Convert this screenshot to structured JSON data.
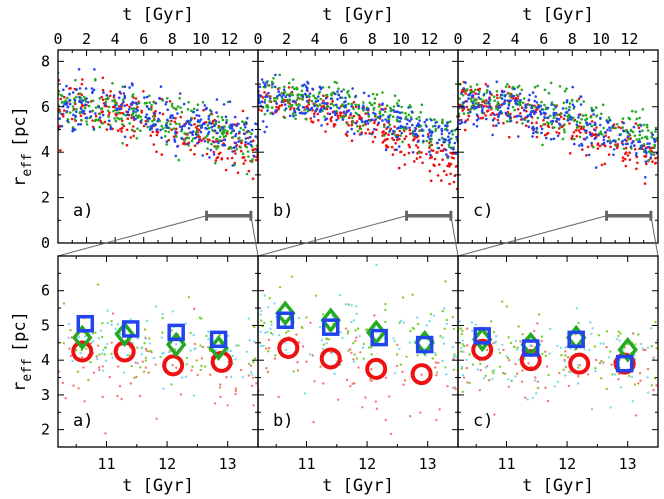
{
  "chart_data": {
    "type": "scatter",
    "description_series": [
      {
        "name": "red",
        "color": "#ee1111",
        "light_color": "#f47a6a"
      },
      {
        "name": "green",
        "color": "#22aa22",
        "light_color": "#7fd030"
      },
      {
        "name": "blue",
        "color": "#2244ee",
        "light_color": "#80d8ee"
      }
    ],
    "top_row": {
      "xlabel": "t [Gyr]",
      "ylabel_main": "r",
      "ylabel_sub": "eff",
      "ylabel_unit": "[pc]",
      "xlim": [
        0,
        14
      ],
      "ylim": [
        0,
        8.5
      ],
      "x_ticks": [
        "0",
        "2",
        "4",
        "6",
        "8",
        "10",
        "12"
      ],
      "x_tick_values": [
        0,
        2,
        4,
        6,
        8,
        10,
        12
      ],
      "y_ticks": [
        "0",
        "2",
        "4",
        "6",
        "8"
      ],
      "y_tick_values": [
        0,
        2,
        4,
        6,
        8
      ],
      "zoom_bar": [
        10.4,
        13.5
      ],
      "zoom_bar_y": 1.2,
      "panels": [
        {
          "label": "a)",
          "trend": {
            "red": [
              6.0,
              4.0
            ],
            "green": [
              6.0,
              4.3
            ],
            "blue": [
              6.0,
              4.6
            ]
          },
          "spread": 0.55
        },
        {
          "label": "b)",
          "trend": {
            "red": [
              6.3,
              3.3
            ],
            "green": [
              6.5,
              4.6
            ],
            "blue": [
              6.4,
              4.4
            ]
          },
          "spread": 0.45
        },
        {
          "label": "c)",
          "trend": {
            "red": [
              6.2,
              3.5
            ],
            "green": [
              6.3,
              4.4
            ],
            "blue": [
              6.2,
              4.0
            ]
          },
          "spread": 0.5
        }
      ]
    },
    "bottom_row": {
      "xlabel": "t [Gyr]",
      "ylabel_main": "r",
      "ylabel_sub": "eff",
      "ylabel_unit": "[pc]",
      "xlim": [
        10.2,
        13.5
      ],
      "ylim": [
        1.5,
        7.0
      ],
      "x_ticks": [
        "11",
        "12",
        "13"
      ],
      "x_tick_values": [
        11,
        12,
        13
      ],
      "y_ticks": [
        "2",
        "3",
        "4",
        "5",
        "6"
      ],
      "y_tick_values": [
        2,
        3,
        4,
        5,
        6
      ],
      "panels": [
        {
          "label": "a)",
          "red_circles": [
            [
              10.6,
              4.25
            ],
            [
              11.3,
              4.25
            ],
            [
              12.1,
              3.85
            ],
            [
              12.9,
              3.95
            ]
          ],
          "green_diamonds": [
            [
              10.6,
              4.65
            ],
            [
              11.3,
              4.75
            ],
            [
              12.15,
              4.45
            ],
            [
              12.85,
              4.35
            ]
          ],
          "blue_squares": [
            [
              10.65,
              5.05
            ],
            [
              11.4,
              4.9
            ],
            [
              12.15,
              4.8
            ],
            [
              12.85,
              4.6
            ]
          ],
          "dot_levels": {
            "red": 4.0,
            "green": 4.6,
            "blue": 4.6
          }
        },
        {
          "label": "b)",
          "red_circles": [
            [
              10.7,
              4.35
            ],
            [
              11.4,
              4.05
            ],
            [
              12.15,
              3.75
            ],
            [
              12.9,
              3.6
            ]
          ],
          "green_diamonds": [
            [
              10.65,
              5.35
            ],
            [
              11.4,
              5.15
            ],
            [
              12.15,
              4.8
            ],
            [
              12.95,
              4.5
            ]
          ],
          "blue_squares": [
            [
              10.65,
              5.15
            ],
            [
              11.4,
              4.95
            ],
            [
              12.2,
              4.65
            ],
            [
              12.95,
              4.45
            ]
          ],
          "dot_levels": {
            "red": 3.9,
            "green": 5.0,
            "blue": 4.8
          }
        },
        {
          "label": "c)",
          "red_circles": [
            [
              10.6,
              4.3
            ],
            [
              11.4,
              4.0
            ],
            [
              12.2,
              3.9
            ],
            [
              12.95,
              3.9
            ]
          ],
          "green_diamonds": [
            [
              10.6,
              4.6
            ],
            [
              11.4,
              4.45
            ],
            [
              12.15,
              4.65
            ],
            [
              13.0,
              4.3
            ]
          ],
          "blue_squares": [
            [
              10.6,
              4.7
            ],
            [
              11.4,
              4.35
            ],
            [
              12.15,
              4.6
            ],
            [
              12.95,
              3.9
            ]
          ],
          "dot_levels": {
            "red": 4.0,
            "green": 4.4,
            "blue": 4.2
          }
        }
      ]
    }
  }
}
